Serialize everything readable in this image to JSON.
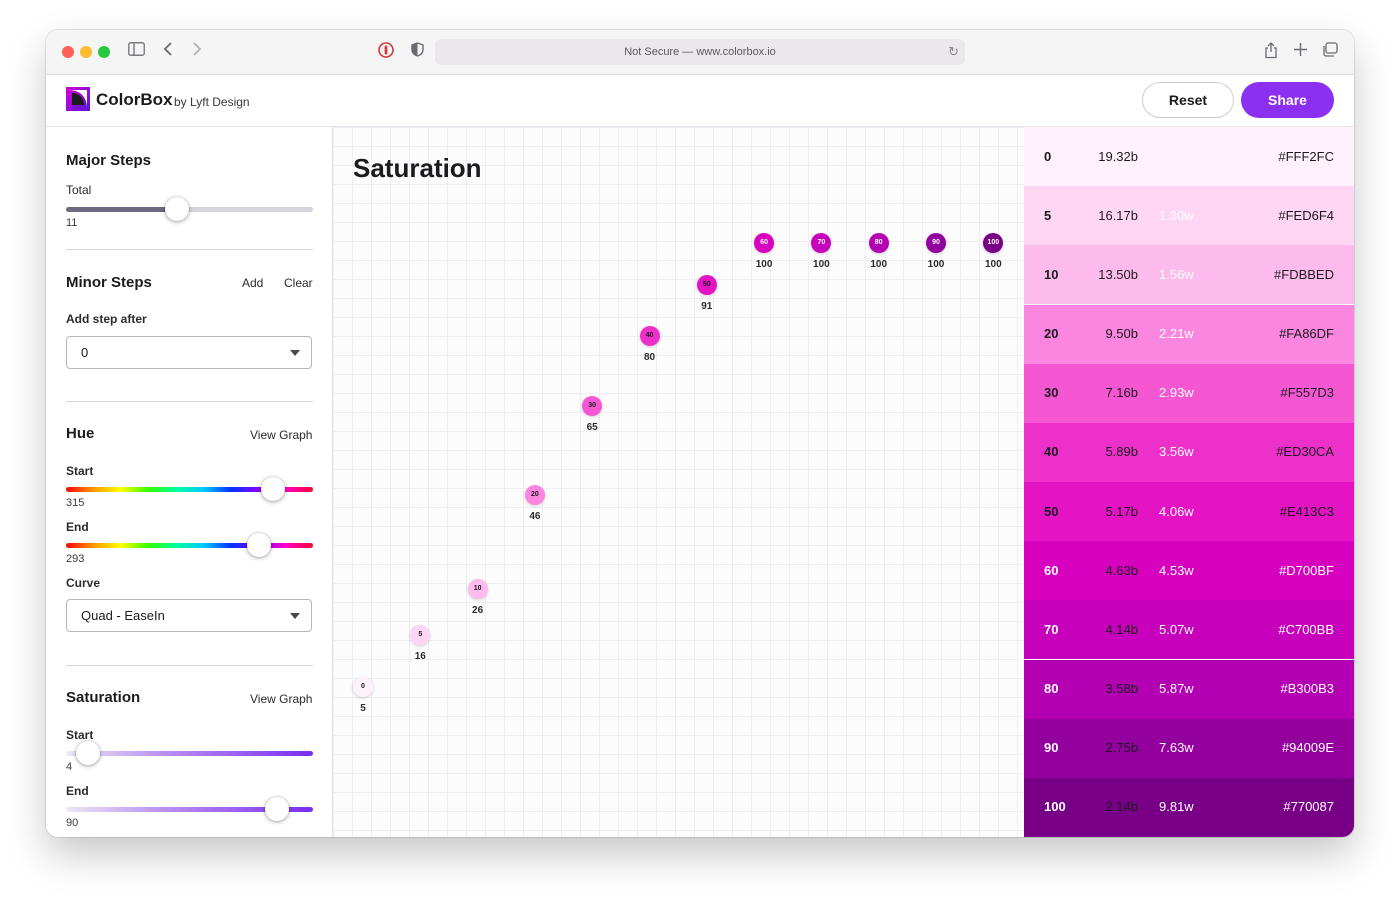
{
  "browser": {
    "url_text": "Not Secure — www.colorbox.io"
  },
  "header": {
    "brand": "ColorBox",
    "brand_sub": "by Lyft Design",
    "reset_label": "Reset",
    "share_label": "Share"
  },
  "sidebar": {
    "major_steps": {
      "title": "Major Steps",
      "total_label": "Total",
      "total_value": "11",
      "slider_fraction": 0.45
    },
    "minor_steps": {
      "title": "Minor Steps",
      "add_label": "Add",
      "clear_label": "Clear",
      "add_after_label": "Add step after",
      "add_after_value": "0"
    },
    "hue": {
      "title": "Hue",
      "view_graph": "View Graph",
      "start_label": "Start",
      "start_value": "315",
      "end_label": "End",
      "end_value": "293",
      "curve_label": "Curve",
      "curve_value": "Quad - EaseIn"
    },
    "saturation": {
      "title": "Saturation",
      "view_graph": "View Graph",
      "start_label": "Start",
      "start_value": "4",
      "end_label": "End",
      "end_value": "90"
    }
  },
  "graph": {
    "title": "Saturation",
    "points": [
      {
        "step": "0",
        "value": "5",
        "bg": "#FFF2FC",
        "fg": "#1b1b1f"
      },
      {
        "step": "5",
        "value": "16",
        "bg": "#FED6F4",
        "fg": "#1b1b1f"
      },
      {
        "step": "10",
        "value": "26",
        "bg": "#FDBBED",
        "fg": "#1b1b1f"
      },
      {
        "step": "20",
        "value": "46",
        "bg": "#FA86DF",
        "fg": "#1b1b1f"
      },
      {
        "step": "30",
        "value": "65",
        "bg": "#F557D3",
        "fg": "#1b1b1f"
      },
      {
        "step": "40",
        "value": "80",
        "bg": "#ED30CA",
        "fg": "#1b1b1f"
      },
      {
        "step": "50",
        "value": "91",
        "bg": "#E413C3",
        "fg": "#1b1b1f"
      },
      {
        "step": "60",
        "value": "100",
        "bg": "#D700BF",
        "fg": "#ffffff"
      },
      {
        "step": "70",
        "value": "100",
        "bg": "#C700BB",
        "fg": "#ffffff"
      },
      {
        "step": "80",
        "value": "100",
        "bg": "#B300B3",
        "fg": "#ffffff"
      },
      {
        "step": "90",
        "value": "100",
        "bg": "#94009E",
        "fg": "#ffffff"
      },
      {
        "step": "100",
        "value": "100",
        "bg": "#770087",
        "fg": "#ffffff"
      }
    ]
  },
  "swatches": [
    {
      "step": "0",
      "black": "19.32b",
      "white": "",
      "hex": "#FFF2FC",
      "fg": "#1b1b1f",
      "white_fg": "#ffffff"
    },
    {
      "step": "5",
      "black": "16.17b",
      "white": "1.30w",
      "hex": "#FED6F4",
      "fg": "#1b1b1f",
      "white_fg": "#ffffff"
    },
    {
      "step": "10",
      "black": "13.50b",
      "white": "1.56w",
      "hex": "#FDBBED",
      "fg": "#1b1b1f",
      "white_fg": "#ffffff"
    },
    {
      "step": "20",
      "black": "9.50b",
      "white": "2.21w",
      "hex": "#FA86DF",
      "fg": "#1b1b1f",
      "white_fg": "#ffffff"
    },
    {
      "step": "30",
      "black": "7.16b",
      "white": "2.93w",
      "hex": "#F557D3",
      "fg": "#1b1b1f",
      "white_fg": "#ffffff"
    },
    {
      "step": "40",
      "black": "5.89b",
      "white": "3.56w",
      "hex": "#ED30CA",
      "fg": "#1b1b1f",
      "white_fg": "#ffffff"
    },
    {
      "step": "50",
      "black": "5.17b",
      "white": "4.06w",
      "hex": "#E413C3",
      "fg": "#1b1b1f",
      "white_fg": "#ffffff"
    },
    {
      "step": "60",
      "black": "4.63b",
      "white": "4.53w",
      "hex": "#D700BF",
      "fg": "#ffffff",
      "black_fg": "#1b1b1f"
    },
    {
      "step": "70",
      "black": "4.14b",
      "white": "5.07w",
      "hex": "#C700BB",
      "fg": "#ffffff",
      "black_fg": "#1b1b1f"
    },
    {
      "step": "80",
      "black": "3.58b",
      "white": "5.87w",
      "hex": "#B300B3",
      "fg": "#ffffff",
      "black_fg": "#1b1b1f"
    },
    {
      "step": "90",
      "black": "2.75b",
      "white": "7.63w",
      "hex": "#94009E",
      "fg": "#ffffff",
      "black_fg": "#1b1b1f"
    },
    {
      "step": "100",
      "black": "2.14b",
      "white": "9.81w",
      "hex": "#770087",
      "fg": "#ffffff",
      "black_fg": "#1b1b1f"
    }
  ]
}
